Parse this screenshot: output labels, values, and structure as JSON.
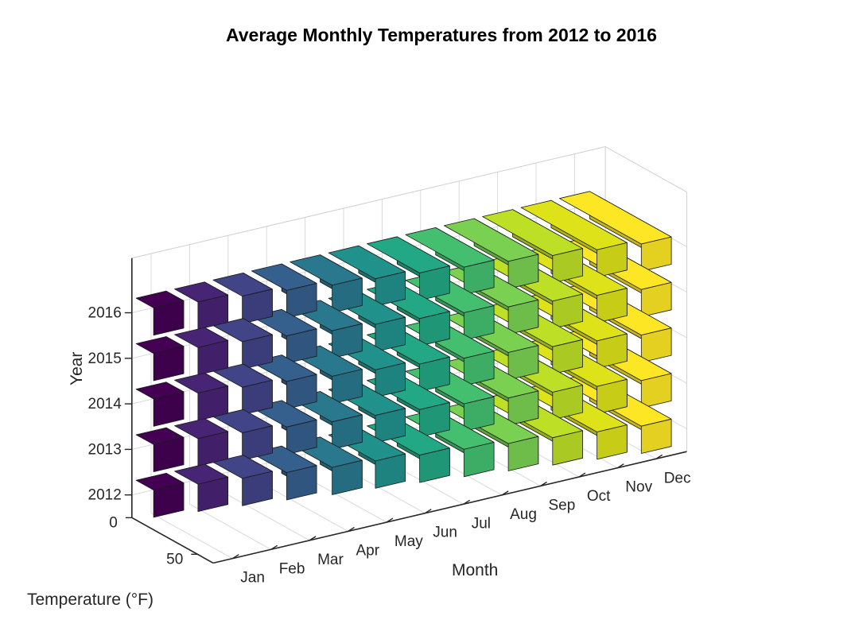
{
  "chart_data": {
    "type": "bar3",
    "title": "Average Monthly Temperatures from 2012 to 2016",
    "xlabel": "Month",
    "ylabel": "Year",
    "zlabel": "Temperature (°F)",
    "categories": [
      "Jan",
      "Feb",
      "Mar",
      "Apr",
      "May",
      "Jun",
      "Jul",
      "Aug",
      "Sep",
      "Oct",
      "Nov",
      "Dec"
    ],
    "series": [
      {
        "name": "2012",
        "values": [
          15,
          20,
          25,
          30,
          36,
          40,
          45,
          50,
          55,
          60,
          65,
          70
        ]
      },
      {
        "name": "2013",
        "values": [
          15,
          20,
          25,
          30,
          36,
          40,
          45,
          50,
          55,
          60,
          65,
          70
        ]
      },
      {
        "name": "2014",
        "values": [
          15,
          20,
          25,
          30,
          36,
          40,
          45,
          50,
          55,
          60,
          65,
          70
        ]
      },
      {
        "name": "2015",
        "values": [
          15,
          20,
          25,
          30,
          36,
          40,
          45,
          50,
          55,
          60,
          65,
          70
        ]
      },
      {
        "name": "2016",
        "values": [
          15,
          20,
          25,
          30,
          36,
          40,
          45,
          50,
          55,
          60,
          65,
          70
        ]
      }
    ],
    "year_ticks": [
      "2012",
      "2013",
      "2014",
      "2015",
      "2016"
    ],
    "temperature_ticks": [
      "0",
      "50"
    ],
    "temperature_range": [
      0,
      85
    ],
    "colormap": "viridis",
    "grid": true,
    "colors": [
      "#440154",
      "#482475",
      "#414487",
      "#355f8d",
      "#2a788e",
      "#21918c",
      "#22a884",
      "#44bf70",
      "#7ad151",
      "#bddf26",
      "#dde318",
      "#fde725"
    ]
  }
}
